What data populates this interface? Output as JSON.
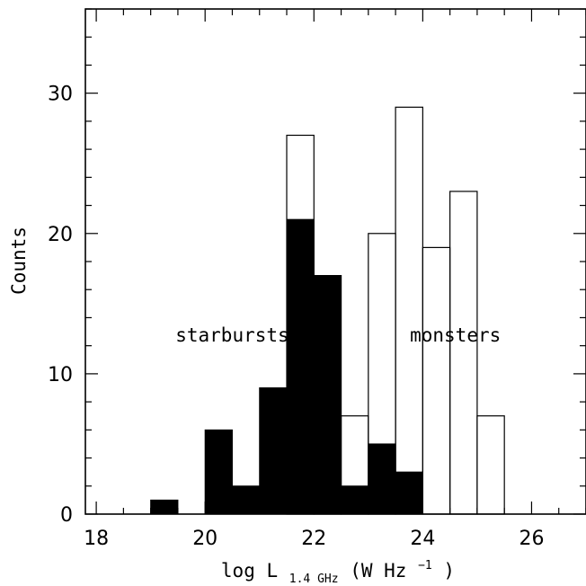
{
  "chart_data": {
    "type": "bar",
    "title": "",
    "xlabel": {
      "prefix": "log L",
      "subscript": "1.4 GHz",
      "unit_open": "(W Hz",
      "superscript": "−1",
      "unit_close": ")"
    },
    "ylabel": "Counts",
    "xlim": [
      17.8,
      27
    ],
    "ylim": [
      0,
      36
    ],
    "x_ticks": [
      18,
      20,
      22,
      24,
      26
    ],
    "x_tick_labels": [
      "18",
      "20",
      "22",
      "24",
      "26"
    ],
    "x_minor_step": 0.5,
    "y_ticks": [
      0,
      10,
      20,
      30
    ],
    "y_tick_labels": [
      "0",
      "10",
      "20",
      "30"
    ],
    "y_minor_step": 2,
    "grid": false,
    "bin_width": 0.5,
    "series": [
      {
        "style": "filled",
        "color": "#000000",
        "bins": [
          {
            "x0": 19.0,
            "count": 1
          },
          {
            "x0": 20.0,
            "count": 6
          },
          {
            "x0": 20.5,
            "count": 2
          },
          {
            "x0": 21.0,
            "count": 9
          },
          {
            "x0": 21.5,
            "count": 21
          },
          {
            "x0": 22.0,
            "count": 17
          },
          {
            "x0": 22.5,
            "count": 2
          },
          {
            "x0": 23.0,
            "count": 5
          },
          {
            "x0": 23.5,
            "count": 3
          }
        ]
      },
      {
        "style": "outline",
        "color": "#000000",
        "bins": [
          {
            "x0": 21.5,
            "count": 27
          },
          {
            "x0": 22.0,
            "count": 17
          },
          {
            "x0": 22.5,
            "count": 7
          },
          {
            "x0": 23.0,
            "count": 20
          },
          {
            "x0": 23.5,
            "count": 29
          },
          {
            "x0": 24.0,
            "count": 19
          },
          {
            "x0": 24.5,
            "count": 23
          },
          {
            "x0": 25.0,
            "count": 7
          }
        ]
      }
    ],
    "annotations": [
      {
        "text": "starbursts",
        "x": 20.5,
        "y": 12.3
      },
      {
        "text": "monsters",
        "x": 24.6,
        "y": 12.3
      }
    ]
  }
}
